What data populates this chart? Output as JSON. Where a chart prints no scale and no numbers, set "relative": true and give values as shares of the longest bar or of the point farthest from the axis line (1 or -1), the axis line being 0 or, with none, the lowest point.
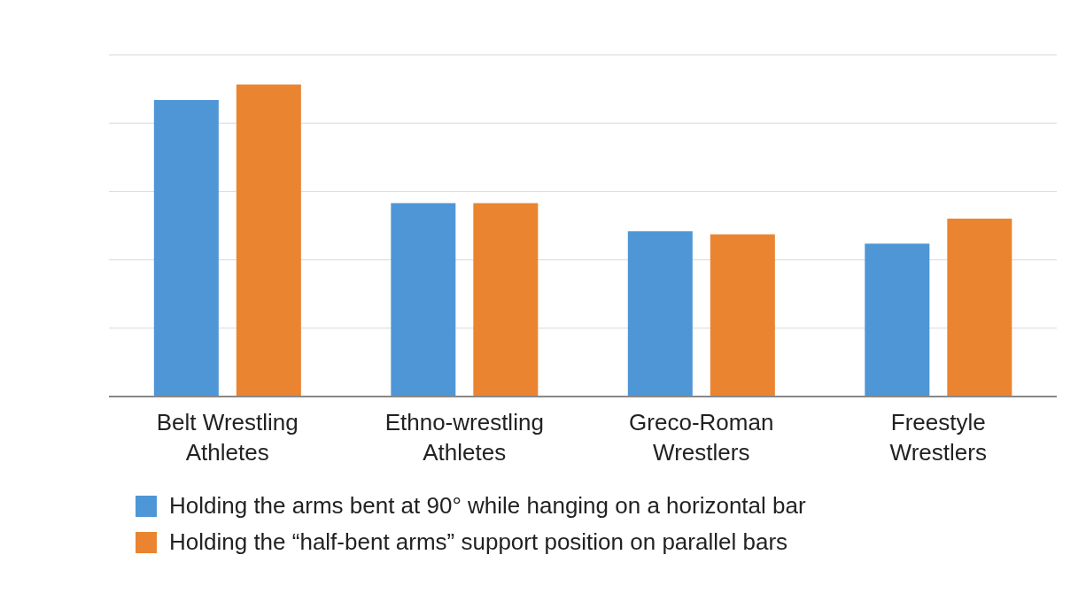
{
  "chart_data": {
    "type": "bar",
    "relative": true,
    "categories": [
      "Belt Wrestling Athletes",
      "Ethno-wrestling Athletes",
      "Greco-Roman Wrestlers",
      "Freestyle Wrestlers"
    ],
    "series": [
      {
        "name": "Holding the arms bent at 90° while hanging on a horizontal bar",
        "color": "#4f96d6",
        "values": [
          0.95,
          0.62,
          0.53,
          0.49
        ]
      },
      {
        "name": "Holding the “half-bent arms” support position on parallel bars",
        "color": "#ea8430",
        "values": [
          1,
          0.62,
          0.52,
          0.57
        ]
      }
    ],
    "grid": "y",
    "legend": "bottom"
  }
}
